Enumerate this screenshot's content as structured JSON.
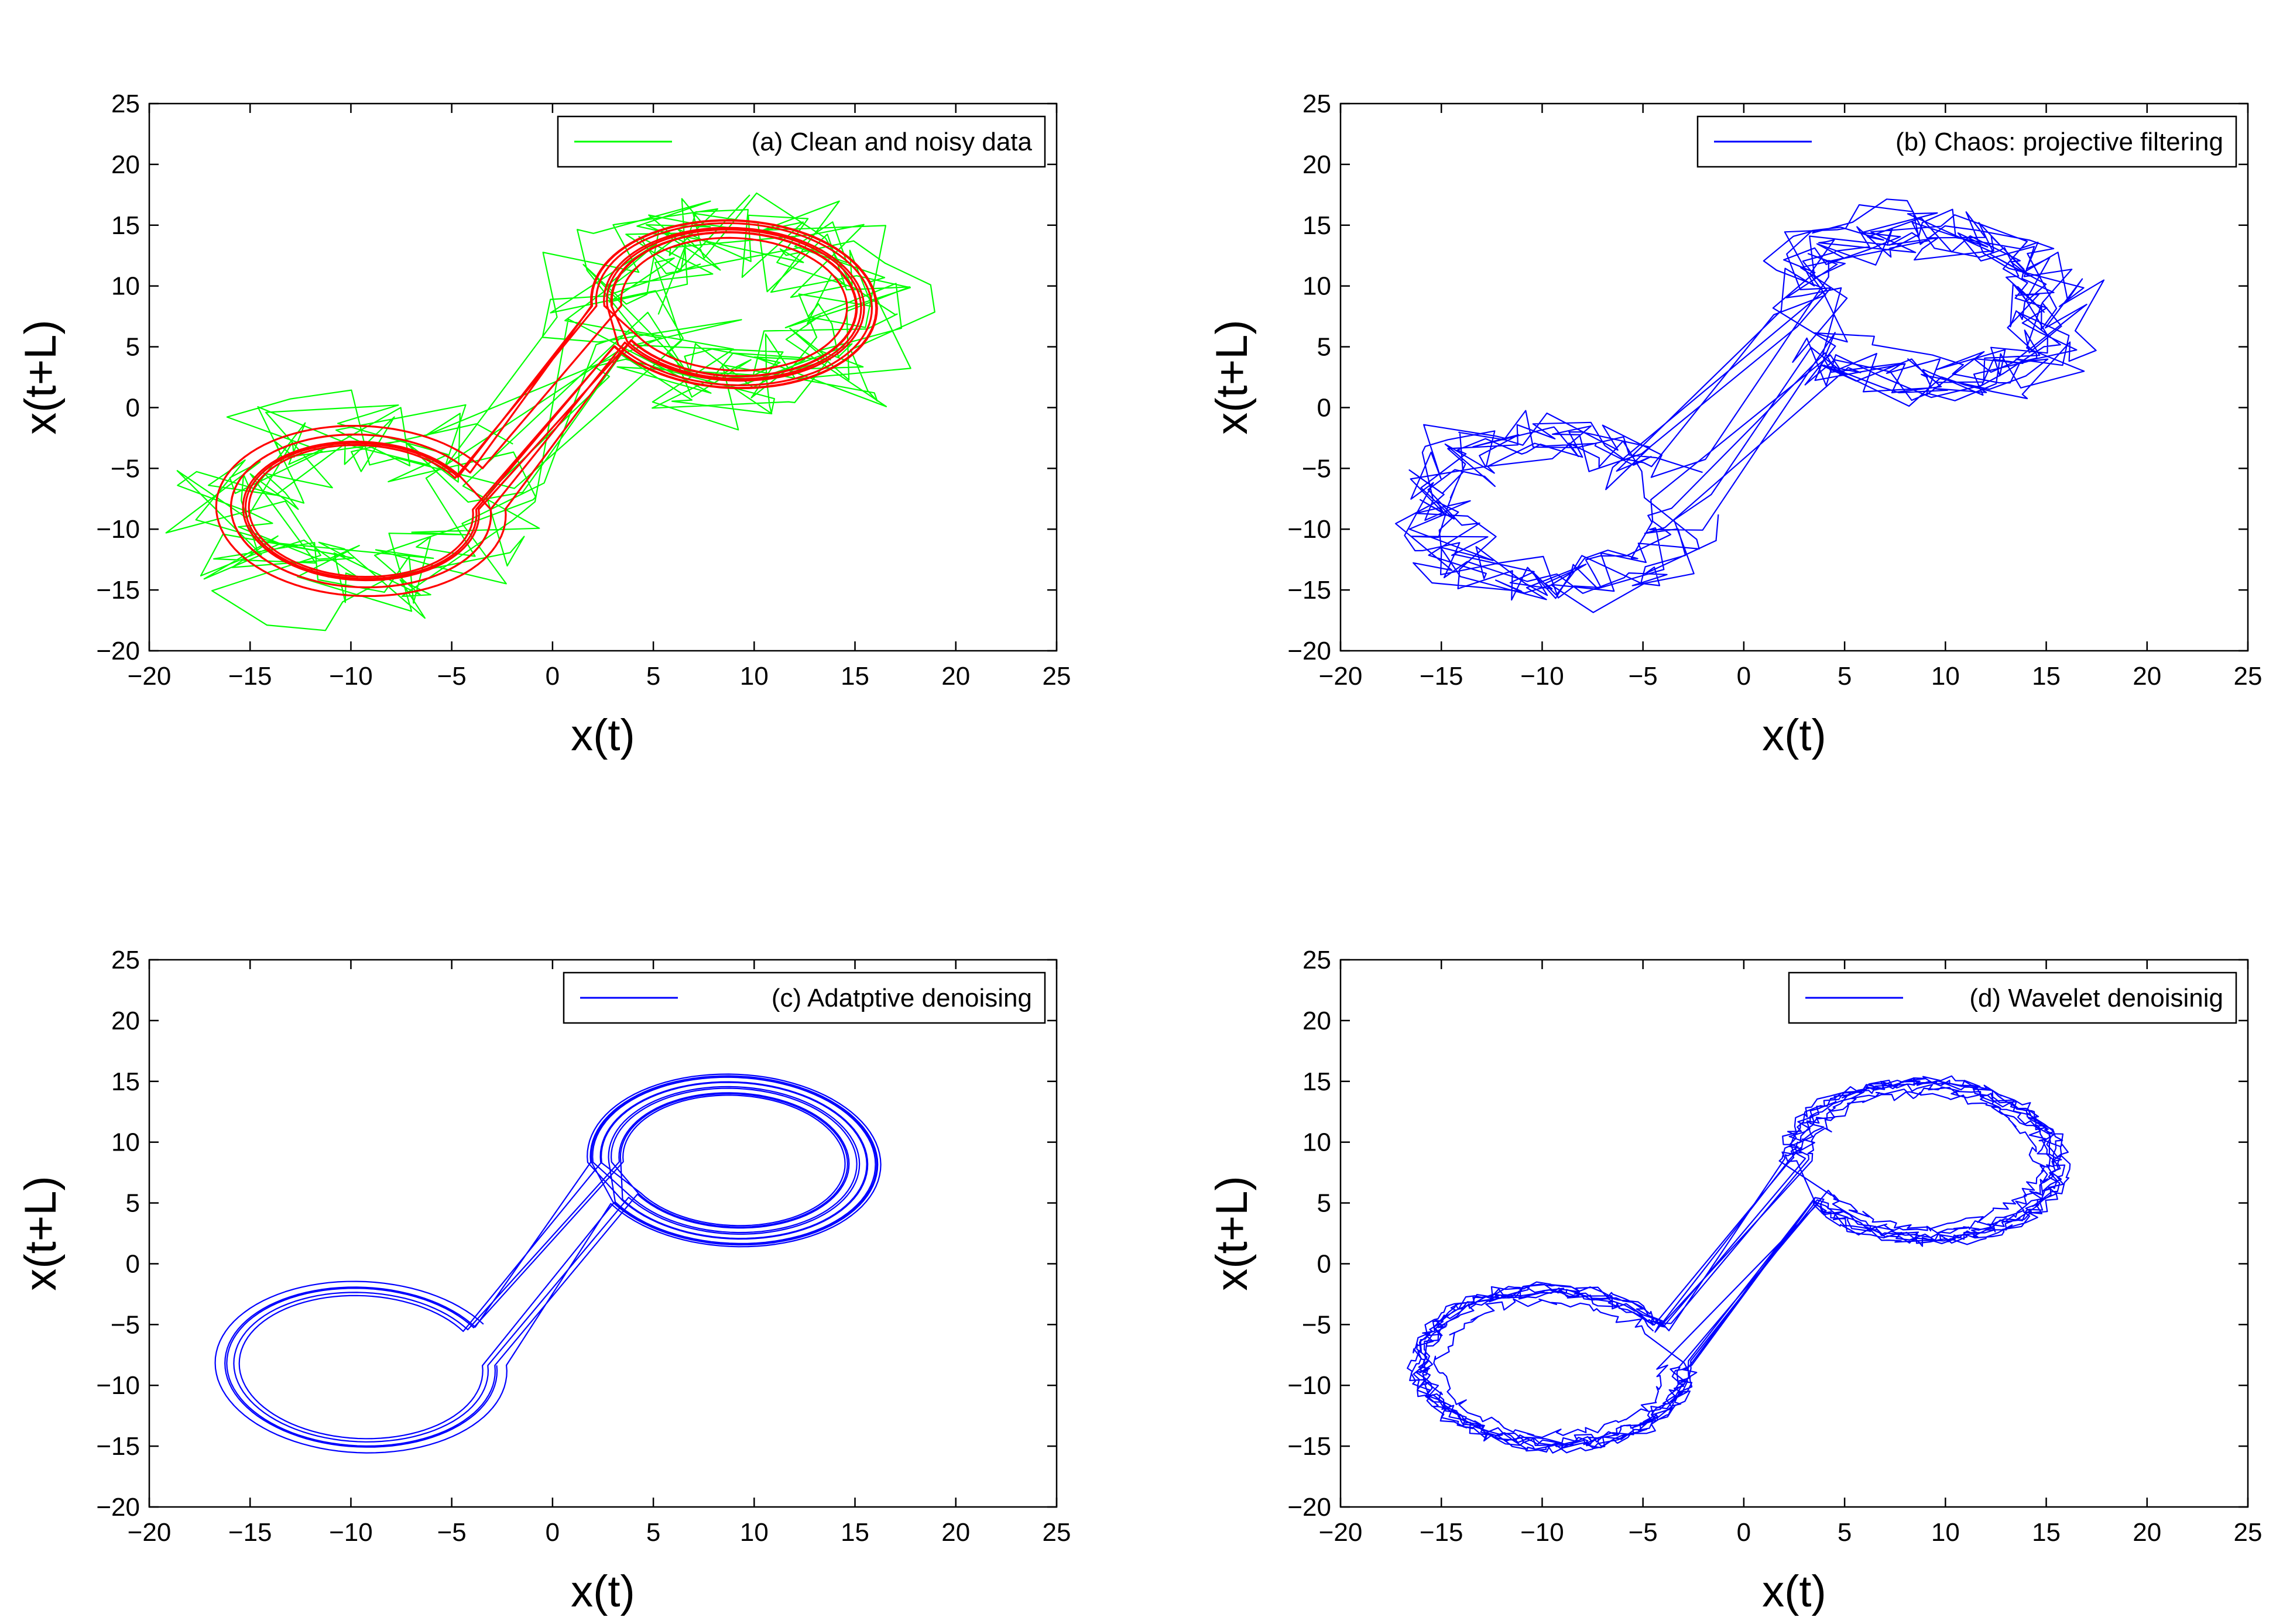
{
  "chart_data": [
    {
      "type": "line",
      "panel": "a",
      "xlim": [
        -20,
        25
      ],
      "ylim": [
        -20,
        25
      ],
      "xticks": [
        "−20",
        "−15",
        "−10",
        "−5",
        "0",
        "5",
        "10",
        "15",
        "20",
        "25"
      ],
      "yticks": [
        "25",
        "20",
        "15",
        "10",
        "5",
        "0",
        "−5",
        "−10",
        "−15",
        "−20"
      ],
      "xlabel": "x(t)",
      "ylabel": "x(t+L)",
      "legend": "(a) Clean and noisy data",
      "legend_position": "top-right",
      "series": [
        {
          "name": "noisy",
          "color": "#00ff00",
          "style": "noisy",
          "noise": 3.6,
          "turns": 14
        },
        {
          "name": "clean",
          "color": "#ff0000",
          "style": "clean",
          "noise": 0,
          "turns": 14
        }
      ]
    },
    {
      "type": "line",
      "panel": "b",
      "xlim": [
        -20,
        25
      ],
      "ylim": [
        -20,
        25
      ],
      "xticks": [
        "−20",
        "−15",
        "−10",
        "−5",
        "0",
        "5",
        "10",
        "15",
        "20",
        "25"
      ],
      "yticks": [
        "25",
        "20",
        "15",
        "10",
        "5",
        "0",
        "−5",
        "−10",
        "−15",
        "−20"
      ],
      "xlabel": "x(t)",
      "ylabel": "x(t+L)",
      "legend": "(b) Chaos: projective filtering",
      "legend_position": "top-right",
      "series": [
        {
          "name": "filtered",
          "color": "#0000ff",
          "style": "jagged",
          "noise": 1.9,
          "turns": 16
        }
      ]
    },
    {
      "type": "line",
      "panel": "c",
      "xlim": [
        -20,
        25
      ],
      "ylim": [
        -20,
        25
      ],
      "xticks": [
        "−20",
        "−15",
        "−10",
        "−5",
        "0",
        "5",
        "10",
        "15",
        "20",
        "25"
      ],
      "yticks": [
        "25",
        "20",
        "15",
        "10",
        "5",
        "0",
        "−5",
        "−10",
        "−15",
        "−20"
      ],
      "xlabel": "x(t)",
      "ylabel": "x(t+L)",
      "legend": "(c) Adatptive denoising",
      "legend_position": "top-right",
      "series": [
        {
          "name": "adaptive",
          "color": "#0000ff",
          "style": "smooth",
          "noise": 0,
          "turns": 16
        }
      ]
    },
    {
      "type": "line",
      "panel": "d",
      "xlim": [
        -20,
        25
      ],
      "ylim": [
        -20,
        25
      ],
      "xticks": [
        "−20",
        "−15",
        "−10",
        "−5",
        "0",
        "5",
        "10",
        "15",
        "20",
        "25"
      ],
      "yticks": [
        "25",
        "20",
        "15",
        "10",
        "5",
        "0",
        "−5",
        "−10",
        "−15",
        "−20"
      ],
      "xlabel": "x(t)",
      "ylabel": "x(t+L)",
      "legend": "(d) Wavelet denoisinig",
      "legend_position": "top-right",
      "series": [
        {
          "name": "wavelet",
          "color": "#0000ff",
          "style": "smooth",
          "noise": 0.4,
          "turns": 16
        }
      ]
    }
  ]
}
